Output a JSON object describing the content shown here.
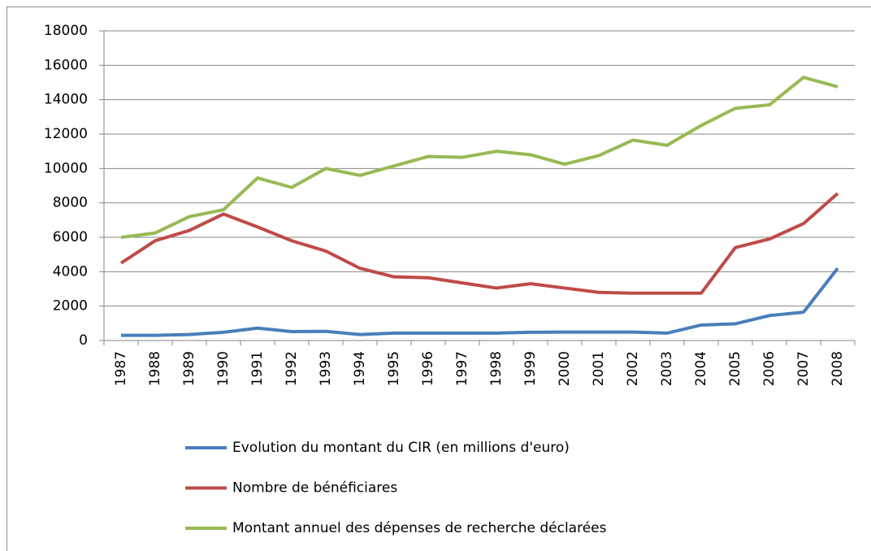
{
  "chart_data": {
    "type": "line",
    "categories": [
      "1987",
      "1988",
      "1989",
      "1990",
      "1991",
      "1992",
      "1993",
      "1994",
      "1995",
      "1996",
      "1997",
      "1998",
      "1999",
      "2000",
      "2001",
      "2002",
      "2003",
      "2004",
      "2005",
      "2006",
      "2007",
      "2008"
    ],
    "series": [
      {
        "name": "Evolution du montant du CIR (en millions d'euro)",
        "color": "#4a7ebb",
        "values": [
          300,
          300,
          350,
          480,
          720,
          520,
          530,
          350,
          430,
          430,
          430,
          430,
          480,
          490,
          490,
          490,
          430,
          900,
          970,
          1450,
          1650,
          4200
        ]
      },
      {
        "name": "Nombre de bénéficiares",
        "color": "#be4b48",
        "values": [
          4500,
          5800,
          6400,
          7350,
          6600,
          5800,
          5200,
          4200,
          3700,
          3650,
          3350,
          3050,
          3300,
          3050,
          2800,
          2750,
          2750,
          2750,
          5400,
          5900,
          6800,
          8550
        ]
      },
      {
        "name": "Montant annuel des dépenses de recherche déclarées",
        "color": "#98b954",
        "values": [
          6000,
          6250,
          7200,
          7600,
          9450,
          8900,
          10000,
          9600,
          10150,
          10700,
          10650,
          11000,
          10800,
          10250,
          10750,
          11650,
          11350,
          12500,
          13500,
          13700,
          15300,
          14750
        ]
      }
    ],
    "ylim": [
      0,
      18000
    ],
    "yticks": [
      0,
      2000,
      4000,
      6000,
      8000,
      10000,
      12000,
      14000,
      16000,
      18000
    ],
    "grid": true,
    "legend": "bottom"
  }
}
